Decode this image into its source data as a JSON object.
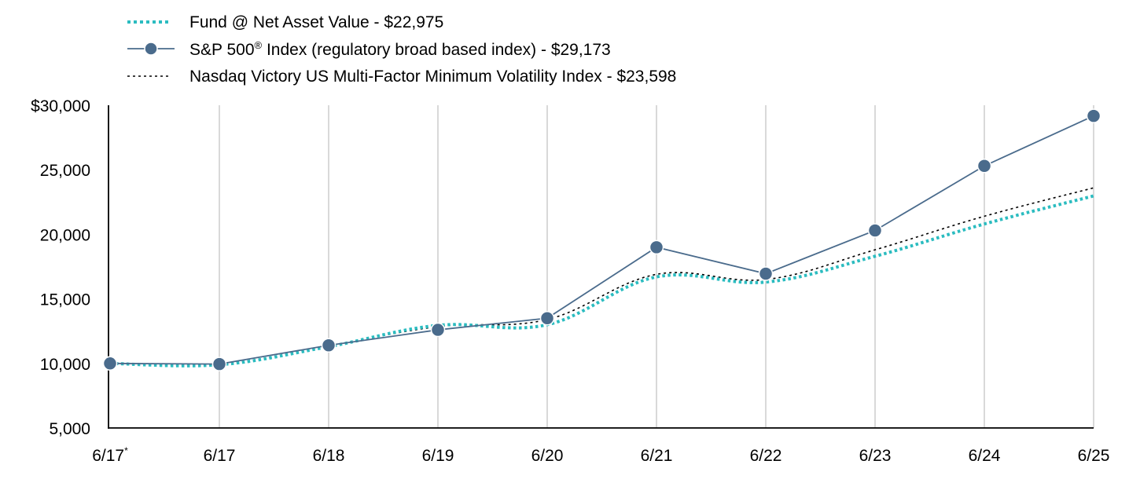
{
  "chart_data": {
    "type": "line",
    "x_tick_labels": [
      "6/17",
      "6/17",
      "6/18",
      "6/19",
      "6/20",
      "6/21",
      "6/22",
      "6/23",
      "6/24",
      "6/25"
    ],
    "x_tick_footnote_marks": [
      "*",
      "",
      "",
      "",
      "",
      "",
      "",
      "",
      "",
      ""
    ],
    "y_tick_labels": [
      "$30,000",
      "25,000",
      "20,000",
      "15,000",
      "10,000",
      "5,000"
    ],
    "ylim": [
      5000,
      30000
    ],
    "y_ticks": [
      30000,
      25000,
      20000,
      15000,
      10000,
      5000
    ],
    "grid": "vertical",
    "legend_position": "top-left",
    "series": [
      {
        "name": "Fund @ Net Asset Value - $22,975",
        "color": "#2bbcc0",
        "style": "dotted-thick",
        "values": [
          10000,
          9900,
          11300,
          12950,
          13000,
          16700,
          16300,
          18300,
          20800,
          22975
        ]
      },
      {
        "name": "S&P 500",
        "name_superscript": "®",
        "name_rest": " Index (regulatory broad based index) - $29,173",
        "color": "#4a6b8c",
        "style": "solid-markers",
        "values": [
          10000,
          9950,
          11400,
          12600,
          13500,
          19000,
          16950,
          20300,
          25300,
          29173
        ]
      },
      {
        "name": "Nasdaq Victory US Multi-Factor Minimum Volatility Index - $23,598",
        "color": "#000000",
        "style": "dotted-thin",
        "values": [
          10000,
          9950,
          11350,
          12850,
          13400,
          16900,
          16500,
          18800,
          21400,
          23598
        ]
      }
    ]
  }
}
